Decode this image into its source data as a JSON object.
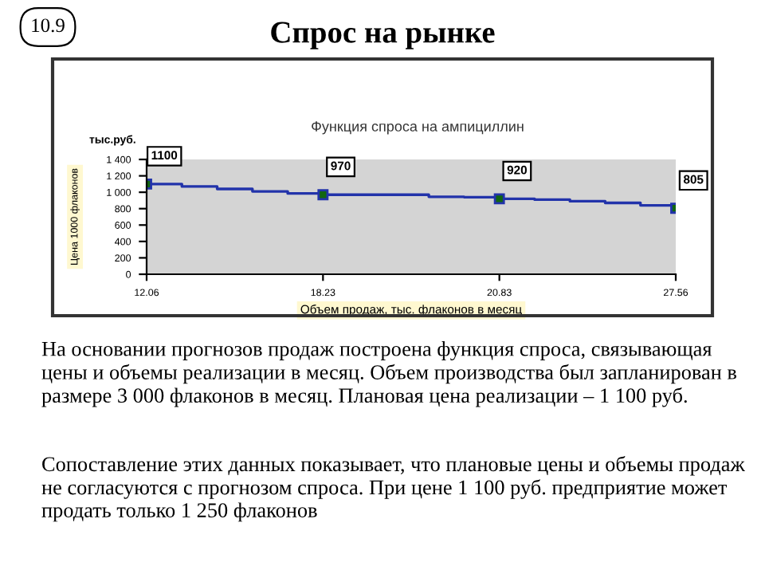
{
  "chart_data": {
    "type": "step",
    "title": "Функция спроса на ампициллин",
    "subtitle": "Спрос на рынке",
    "xlabel": "Объем продаж, тыс. флаконов в месяц",
    "ylabel": "Цена 1000 флаконов",
    "annotations": [
      "10.9",
      "тыс.руб.",
      "На основании прогнозов продаж построена функция спроса, связывающая цены и объемы реализации в месяц. Объем производства был запланирован в размере 3 000 флаконов в месяц. Плановая цена реализации – 1 100 руб.",
      "Сопоставление этих данных показывает, что плановые цены и объемы продаж не согласуются с прогнозом спроса. При цене 1 100 руб. предприятие может продать только 1 250 флаконов"
    ],
    "categories": [
      "12.06",
      null,
      null,
      null,
      null,
      "18.23",
      null,
      null,
      null,
      null,
      "20.83",
      null,
      null,
      null,
      null,
      "27.56"
    ],
    "series": [
      {
        "color": "#2233aa",
        "values": [
          1100,
          1070,
          1040,
          1010,
          985,
          970,
          970,
          970,
          945,
          940,
          920,
          910,
          890,
          870,
          840,
          805
        ],
        "value_labels": [
          "1100",
          null,
          null,
          null,
          null,
          "970",
          null,
          null,
          null,
          null,
          "920",
          null,
          null,
          null,
          null,
          "805"
        ]
      }
    ],
    "ylim": [
      0,
      1400
    ],
    "yticks": [
      {
        "value": 0,
        "label": "0"
      },
      {
        "value": 200,
        "label": "200"
      },
      {
        "value": 400,
        "label": "400"
      },
      {
        "value": 600,
        "label": "600"
      },
      {
        "value": 800,
        "label": "800"
      },
      {
        "value": 1000,
        "label": "1 000"
      },
      {
        "value": 1200,
        "label": "1 200"
      },
      {
        "value": 1400,
        "label": "1 400"
      }
    ],
    "grid": false,
    "legend": false
  }
}
